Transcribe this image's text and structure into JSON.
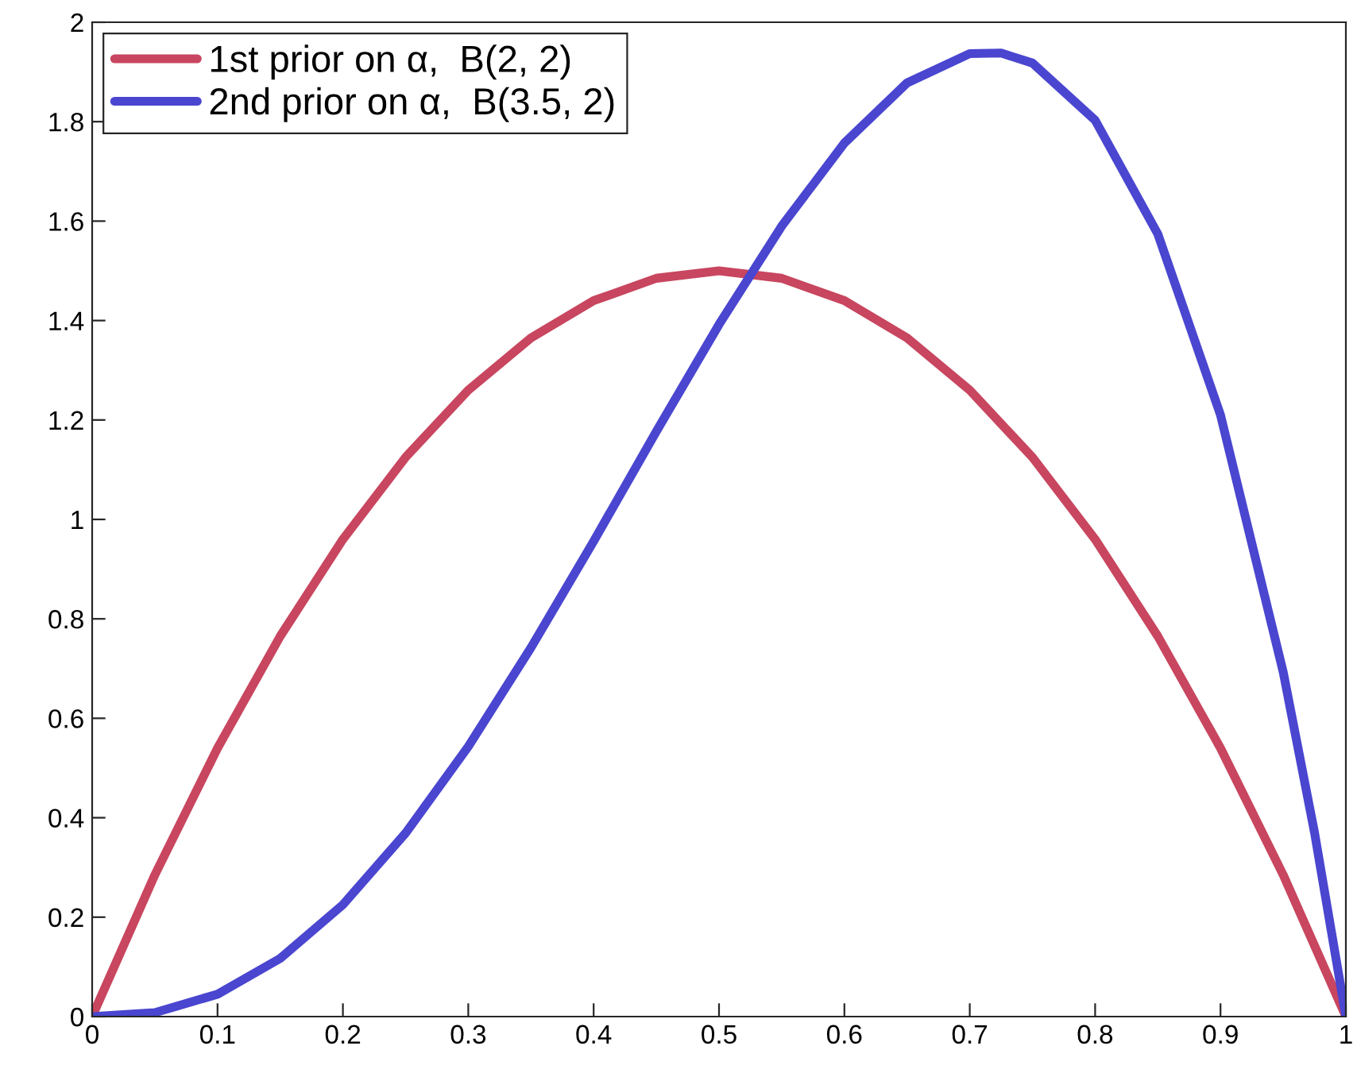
{
  "chart_data": {
    "type": "line",
    "xlim": [
      0,
      1
    ],
    "ylim": [
      0,
      2
    ],
    "xticks": [
      0,
      0.1,
      0.2,
      0.3,
      0.4,
      0.5,
      0.6,
      0.7,
      0.8,
      0.9,
      1
    ],
    "yticks": [
      0,
      0.2,
      0.4,
      0.6,
      0.8,
      1,
      1.2,
      1.4,
      1.6,
      1.8,
      2
    ],
    "grid": false,
    "legend": "top left",
    "marker": "none",
    "line_style": "solid",
    "series": [
      {
        "name": "1st prior on α,  B(2, 2)",
        "color": "#c8465f",
        "x": [
          0,
          0.05,
          0.1,
          0.15,
          0.2,
          0.25,
          0.3,
          0.35,
          0.4,
          0.45,
          0.5,
          0.55,
          0.6,
          0.65,
          0.7,
          0.75,
          0.8,
          0.85,
          0.9,
          0.95,
          1
        ],
        "values": [
          0,
          0.285,
          0.54,
          0.765,
          0.96,
          1.125,
          1.26,
          1.365,
          1.44,
          1.485,
          1.5,
          1.485,
          1.44,
          1.365,
          1.26,
          1.125,
          0.96,
          0.765,
          0.54,
          0.285,
          0
        ]
      },
      {
        "name": "2nd prior on α,  B(3.5, 2)",
        "color": "#4a46d0",
        "x": [
          0,
          0.05,
          0.1,
          0.15,
          0.2,
          0.25,
          0.3,
          0.35,
          0.4,
          0.45,
          0.5,
          0.55,
          0.6,
          0.65,
          0.7,
          0.725,
          0.75,
          0.8,
          0.85,
          0.9,
          0.95,
          0.975,
          1
        ],
        "values": [
          0,
          0.008,
          0.045,
          0.117,
          0.225,
          0.369,
          0.543,
          0.742,
          0.956,
          1.177,
          1.392,
          1.59,
          1.757,
          1.878,
          1.937,
          1.938,
          1.918,
          1.803,
          1.574,
          1.21,
          0.693,
          0.37,
          0
        ]
      }
    ]
  }
}
